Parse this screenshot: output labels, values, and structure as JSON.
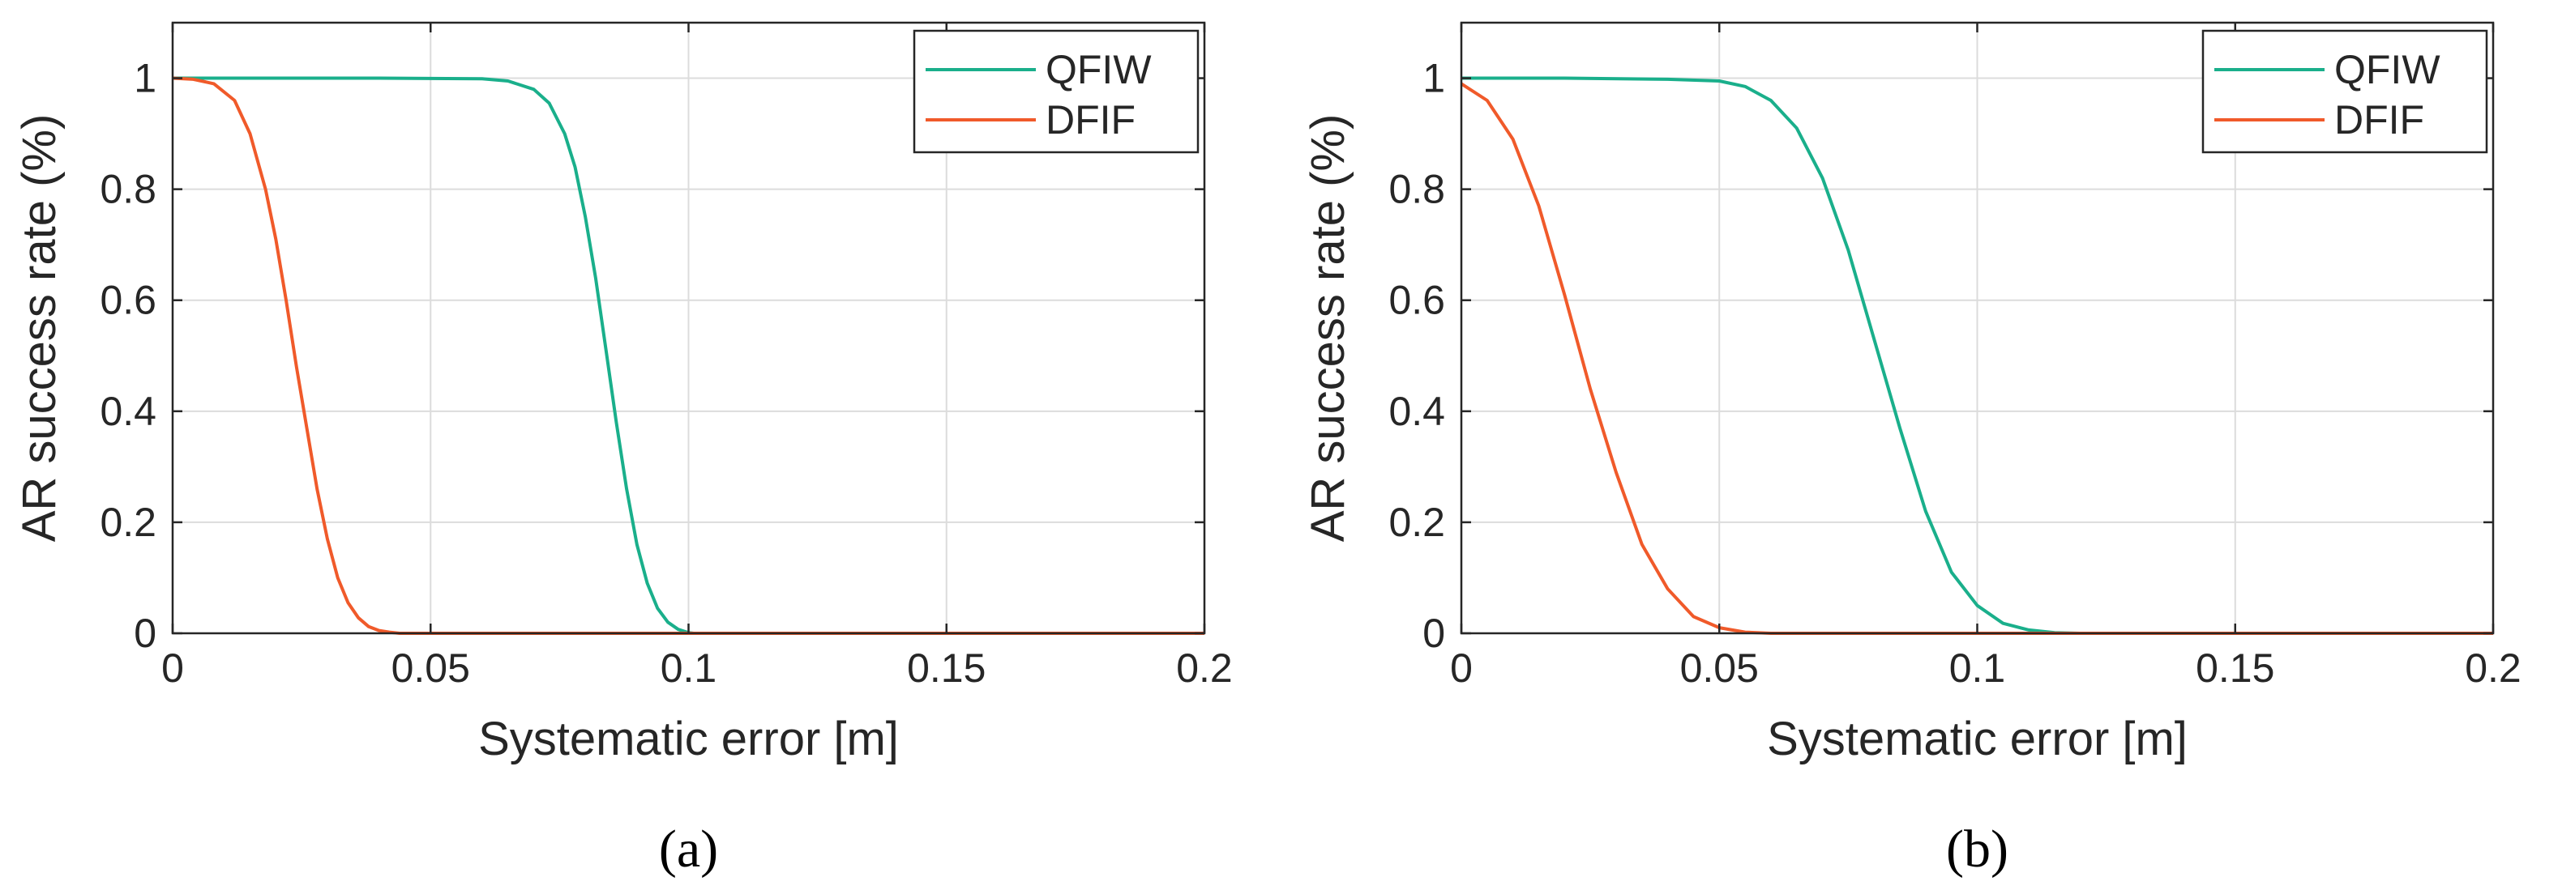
{
  "chart_data": [
    {
      "type": "line",
      "panel_label": "(a)",
      "xlabel": "Systematic error [m]",
      "ylabel": "AR success rate (%)",
      "xlim": [
        0,
        0.2
      ],
      "ylim": [
        0,
        1.1
      ],
      "xticks": [
        0,
        0.05,
        0.1,
        0.15,
        0.2
      ],
      "xtick_labels": [
        "0",
        "0.05",
        "0.1",
        "0.15",
        "0.2"
      ],
      "yticks": [
        0,
        0.2,
        0.4,
        0.6,
        0.8,
        1
      ],
      "ytick_labels": [
        "0",
        "0.2",
        "0.4",
        "0.6",
        "0.8",
        "1"
      ],
      "grid": true,
      "legend_position": "top-right",
      "series": [
        {
          "name": "QFIW",
          "color": "#1aaf8b",
          "x": [
            0,
            0.02,
            0.04,
            0.06,
            0.065,
            0.07,
            0.073,
            0.076,
            0.078,
            0.08,
            0.082,
            0.084,
            0.086,
            0.088,
            0.09,
            0.092,
            0.094,
            0.096,
            0.098,
            0.1,
            0.101,
            0.15,
            0.2
          ],
          "y": [
            1,
            1,
            1,
            0.999,
            0.995,
            0.98,
            0.955,
            0.9,
            0.84,
            0.75,
            0.64,
            0.51,
            0.38,
            0.26,
            0.16,
            0.09,
            0.045,
            0.02,
            0.007,
            0.001,
            0,
            0,
            0
          ]
        },
        {
          "name": "DFIF",
          "color": "#f05a2a",
          "x": [
            0,
            0.004,
            0.008,
            0.012,
            0.015,
            0.018,
            0.02,
            0.022,
            0.024,
            0.026,
            0.028,
            0.03,
            0.032,
            0.034,
            0.036,
            0.038,
            0.04,
            0.042,
            0.044,
            0.05,
            0.1,
            0.2
          ],
          "y": [
            1,
            0.998,
            0.99,
            0.96,
            0.9,
            0.8,
            0.71,
            0.6,
            0.48,
            0.37,
            0.26,
            0.17,
            0.1,
            0.055,
            0.028,
            0.012,
            0.005,
            0.002,
            0,
            0,
            0,
            0
          ]
        }
      ]
    },
    {
      "type": "line",
      "panel_label": "(b)",
      "xlabel": "Systematic error [m]",
      "ylabel": "AR success rate (%)",
      "xlim": [
        0,
        0.2
      ],
      "ylim": [
        0,
        1.1
      ],
      "xticks": [
        0,
        0.05,
        0.1,
        0.15,
        0.2
      ],
      "xtick_labels": [
        "0",
        "0.05",
        "0.1",
        "0.15",
        "0.2"
      ],
      "yticks": [
        0,
        0.2,
        0.4,
        0.6,
        0.8,
        1
      ],
      "ytick_labels": [
        "0",
        "0.2",
        "0.4",
        "0.6",
        "0.8",
        "1"
      ],
      "grid": true,
      "legend_position": "top-right",
      "series": [
        {
          "name": "QFIW",
          "color": "#1aaf8b",
          "x": [
            0,
            0.02,
            0.04,
            0.05,
            0.055,
            0.06,
            0.065,
            0.07,
            0.075,
            0.08,
            0.085,
            0.09,
            0.095,
            0.1,
            0.105,
            0.11,
            0.115,
            0.12,
            0.15,
            0.2
          ],
          "y": [
            1,
            1,
            0.998,
            0.995,
            0.985,
            0.96,
            0.91,
            0.82,
            0.69,
            0.53,
            0.37,
            0.22,
            0.11,
            0.05,
            0.018,
            0.006,
            0.001,
            0,
            0,
            0
          ]
        },
        {
          "name": "DFIF",
          "color": "#f05a2a",
          "x": [
            0,
            0.005,
            0.01,
            0.015,
            0.02,
            0.025,
            0.03,
            0.035,
            0.04,
            0.045,
            0.05,
            0.055,
            0.06,
            0.1,
            0.2
          ],
          "y": [
            0.99,
            0.96,
            0.89,
            0.77,
            0.61,
            0.44,
            0.29,
            0.16,
            0.08,
            0.03,
            0.01,
            0.002,
            0,
            0,
            0
          ]
        }
      ]
    }
  ]
}
